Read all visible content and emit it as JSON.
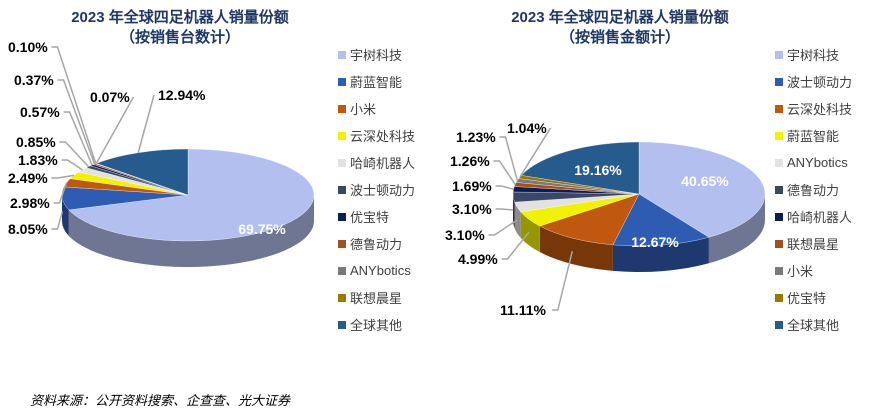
{
  "source": "资料来源：公开资料搜索、企查查、光大证券",
  "chart_data": [
    {
      "type": "pie",
      "title": "2023 年全球四足机器人销量份额",
      "subtitle": "（按销售台数计）",
      "legend_position": "right",
      "categories": [
        "宇树科技",
        "蔚蓝智能",
        "小米",
        "云深处科技",
        "哈崎机器人",
        "波士顿动力",
        "优宝特",
        "德鲁动力",
        "ANYbotics",
        "联想晨星",
        "全球其他"
      ],
      "values": [
        69.75,
        8.05,
        2.98,
        2.49,
        1.83,
        0.85,
        0.57,
        0.37,
        0.1,
        0.07,
        12.94
      ],
      "labels": [
        "69.75%",
        "8.05%",
        "2.98%",
        "2.49%",
        "1.83%",
        "0.85%",
        "0.57%",
        "0.37%",
        "0.10%",
        "0.07%",
        "12.94%"
      ],
      "colors": [
        "#b3bfee",
        "#2f5cb3",
        "#c0580f",
        "#f2f200",
        "#e2e2e2",
        "#3a4863",
        "#0b1c5c",
        "#a3501a",
        "#7a7a7a",
        "#9a7800",
        "#255b8d"
      ]
    },
    {
      "type": "pie",
      "title": "2023 年全球四足机器人销量份额",
      "subtitle": "（按销售金额计）",
      "legend_position": "right",
      "categories": [
        "宇树科技",
        "波士顿动力",
        "云深处科技",
        "蔚蓝智能",
        "ANYbotics",
        "德鲁动力",
        "哈崎机器人",
        "联想晨星",
        "小米",
        "优宝特",
        "全球其他"
      ],
      "values": [
        40.65,
        12.67,
        11.11,
        4.99,
        3.1,
        3.1,
        1.69,
        1.26,
        1.23,
        1.04,
        19.16
      ],
      "labels": [
        "40.65%",
        "12.67%",
        "11.11%",
        "4.99%",
        "3.10%",
        "3.10%",
        "1.69%",
        "1.26%",
        "1.23%",
        "1.04%",
        "19.16%"
      ],
      "colors": [
        "#b3bfee",
        "#2f5cb3",
        "#c0580f",
        "#f2f200",
        "#e2e2e2",
        "#3a4863",
        "#0b1c5c",
        "#a3501a",
        "#7a7a7a",
        "#9a7800",
        "#255b8d"
      ]
    }
  ]
}
